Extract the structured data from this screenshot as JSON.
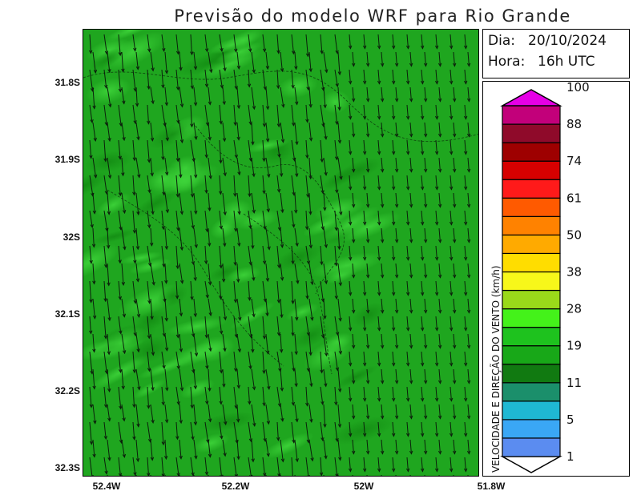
{
  "title": "Previsão do modelo WRF para Rio Grande",
  "info": {
    "day_label": "Dia:",
    "day_value": "20/10/2024",
    "hour_label": "Hora:",
    "hour_value": "16h UTC"
  },
  "colorbar": {
    "title": "VELOCIDADE E DIREÇÃO DO VENTO (km/h)",
    "tick_labels": [
      "1",
      "5",
      "11",
      "19",
      "28",
      "38",
      "50",
      "61",
      "74",
      "88",
      "100"
    ],
    "colors": [
      "#8c6be6",
      "#5b8cf0",
      "#3aa7f5",
      "#1fb8d3",
      "#1b8f6b",
      "#117a11",
      "#18a818",
      "#1ec21e",
      "#44f21a",
      "#9ad91a",
      "#f7f71a",
      "#ffdd00",
      "#ffaa00",
      "#ff8200",
      "#ff5a00",
      "#ff1a1a",
      "#d60000",
      "#9e0000",
      "#8f0a2a",
      "#c2007a",
      "#e600e6"
    ]
  },
  "map": {
    "latitude_labels": [
      "31.8S",
      "31.9S",
      "32S",
      "32.1S",
      "32.2S",
      "32.3S"
    ],
    "longitude_labels": [
      "52.4W",
      "52.2W",
      "52W",
      "51.8W"
    ],
    "fill_color": "#1fa61f",
    "arrow_color": "#0b1f0b"
  }
}
